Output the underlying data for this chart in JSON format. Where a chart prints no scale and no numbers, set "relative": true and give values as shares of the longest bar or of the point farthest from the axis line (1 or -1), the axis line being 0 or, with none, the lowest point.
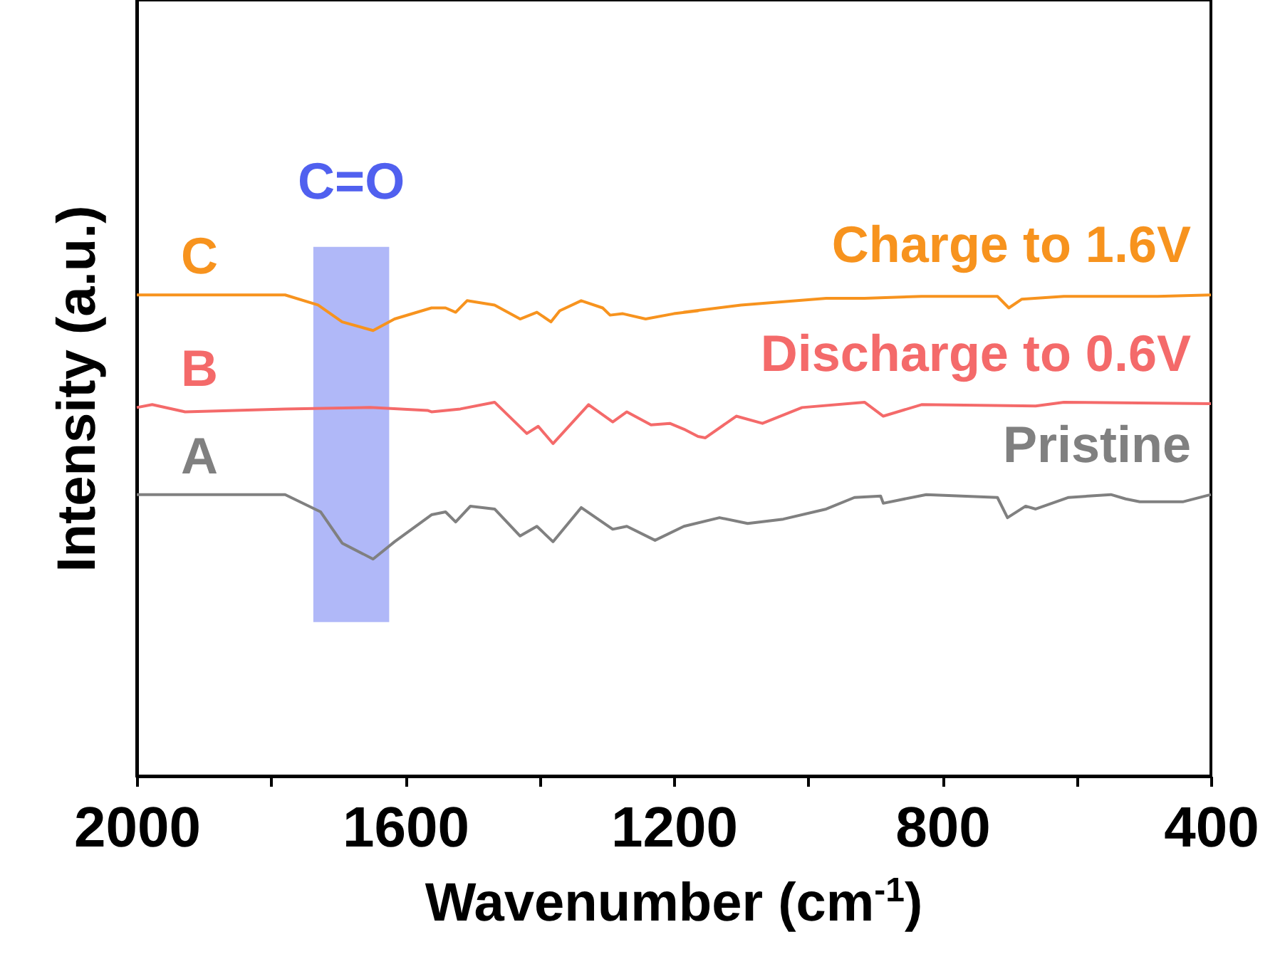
{
  "chart_data": {
    "type": "line",
    "xlabel": "Wavenumber (cm$^{-1}$)",
    "ylabel": "Intensity (a.u.)",
    "relative": true,
    "xlim": [
      2000,
      400
    ],
    "xticks": [
      2000,
      {
        "value": 1800,
        "label": null
      },
      1600,
      {
        "value": 1400,
        "label": null
      },
      1200,
      {
        "value": 1000,
        "label": null
      },
      800,
      {
        "value": 600,
        "label": null
      },
      400
    ],
    "grid": false,
    "marker": "none",
    "line_style": "solid",
    "bands": [
      {
        "axis": "x",
        "from": 1737,
        "to": 1624,
        "label": "C=O",
        "color": "#b0b8f8"
      }
    ],
    "annotations": [
      "C",
      "B",
      "A"
    ],
    "series": [
      {
        "name": "Charge to 1.6V",
        "color": "#f7931e",
        "x": [
          2000,
          1779,
          1730,
          1694,
          1648,
          1616,
          1561,
          1540,
          1525,
          1508,
          1467,
          1429,
          1404,
          1383,
          1370,
          1338,
          1306,
          1295,
          1276,
          1242,
          1200,
          1164,
          1185,
          1100,
          973,
          916,
          831,
          718,
          701,
          682,
          619,
          479,
          400
        ],
        "values": [
          1.0,
          1.0,
          0.979,
          0.944,
          0.926,
          0.95,
          0.973,
          0.973,
          0.964,
          0.988,
          0.979,
          0.95,
          0.964,
          0.944,
          0.967,
          0.988,
          0.973,
          0.958,
          0.961,
          0.95,
          0.961,
          0.967,
          0.964,
          0.979,
          0.993,
          0.993,
          0.997,
          0.997,
          0.973,
          0.991,
          0.997,
          0.997,
          1.0
        ]
      },
      {
        "name": "Discharge to 0.6V",
        "color": "#f46a6a",
        "x": [
          2000,
          1977,
          1928,
          1779,
          1652,
          1567,
          1561,
          1518,
          1467,
          1419,
          1402,
          1380,
          1327,
          1291,
          1270,
          1234,
          1206,
          1185,
          1164,
          1153,
          1107,
          1068,
          1009,
          916,
          888,
          831,
          661,
          619,
          400
        ],
        "values": [
          0.766,
          0.772,
          0.757,
          0.763,
          0.766,
          0.76,
          0.757,
          0.763,
          0.777,
          0.712,
          0.727,
          0.691,
          0.772,
          0.736,
          0.757,
          0.73,
          0.733,
          0.721,
          0.706,
          0.703,
          0.748,
          0.733,
          0.766,
          0.777,
          0.748,
          0.772,
          0.769,
          0.777,
          0.774
        ]
      },
      {
        "name": "Pristine",
        "color": "#808080",
        "x": [
          2000,
          1779,
          1726,
          1694,
          1648,
          1616,
          1561,
          1540,
          1525,
          1503,
          1467,
          1429,
          1404,
          1380,
          1338,
          1291,
          1270,
          1228,
          1185,
          1132,
          1090,
          1037,
          973,
          931,
          892,
          888,
          824,
          718,
          703,
          676,
          661,
          612,
          549,
          527,
          506,
          442,
          400
        ],
        "values": [
          0.585,
          0.585,
          0.549,
          0.484,
          0.451,
          0.487,
          0.543,
          0.549,
          0.528,
          0.561,
          0.555,
          0.499,
          0.519,
          0.487,
          0.558,
          0.513,
          0.519,
          0.49,
          0.519,
          0.537,
          0.525,
          0.534,
          0.555,
          0.579,
          0.582,
          0.567,
          0.585,
          0.579,
          0.537,
          0.561,
          0.555,
          0.579,
          0.585,
          0.576,
          0.57,
          0.57,
          0.585
        ]
      }
    ]
  }
}
